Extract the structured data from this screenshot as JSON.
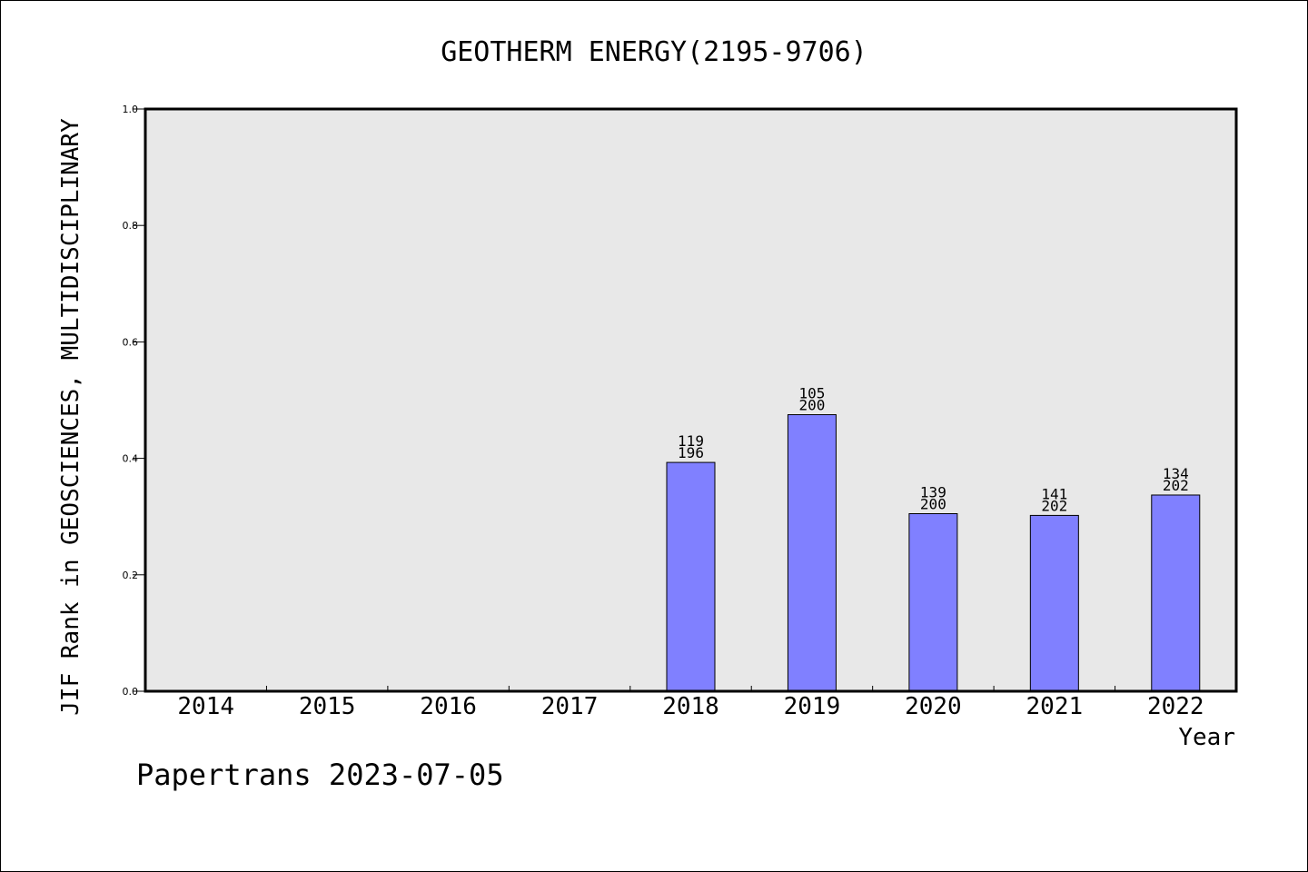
{
  "chart_data": {
    "type": "bar",
    "title": "GEOTHERM ENERGY(2195-9706)",
    "xlabel": "Year",
    "ylabel": "JIF Rank in GEOSCIENCES, MULTIDISCIPLINARY",
    "ylim": [
      0,
      1.0
    ],
    "yticks": [
      "0.0",
      "0.2",
      "0.4",
      "0.6",
      "0.8",
      "1.0"
    ],
    "categories": [
      "2014",
      "2015",
      "2016",
      "2017",
      "2018",
      "2019",
      "2020",
      "2021",
      "2022"
    ],
    "values": [
      null,
      null,
      null,
      null,
      0.393,
      0.475,
      0.305,
      0.302,
      0.337
    ],
    "labels_rank": [
      "",
      "",
      "",
      "",
      "119",
      "105",
      "139",
      "141",
      "134"
    ],
    "labels_total": [
      "",
      "",
      "",
      "",
      "196",
      "200",
      "200",
      "202",
      "202"
    ],
    "grid": false,
    "legend": "none",
    "colors": {
      "bar_fill": "#8080ff",
      "plot_bg": "#e8e8e8",
      "axes": "#000000"
    }
  },
  "footer": {
    "credit": "Papertrans 2023-07-05"
  }
}
